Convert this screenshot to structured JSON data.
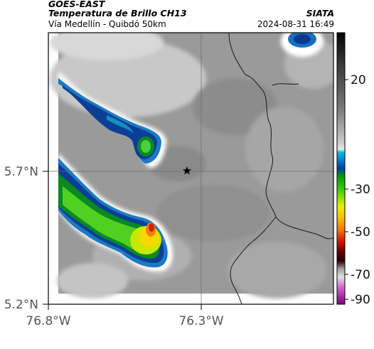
{
  "header": {
    "satellite": "GOES-EAST",
    "product": "Temperatura de Brillo CH13",
    "route": "Vía Medellín - Quibdó 50km",
    "agency": "SIATA",
    "datetime": "2024-08-31 16:49"
  },
  "axes": {
    "lat_ticks": [
      "5.7°N",
      "5.2°N"
    ],
    "lon_ticks": [
      "76.8°W",
      "76.3°W"
    ]
  },
  "colorbar": {
    "ticks": [
      "20",
      "-30",
      "-50",
      "-70",
      "-90"
    ]
  },
  "marker": {
    "icon": "star-icon"
  }
}
